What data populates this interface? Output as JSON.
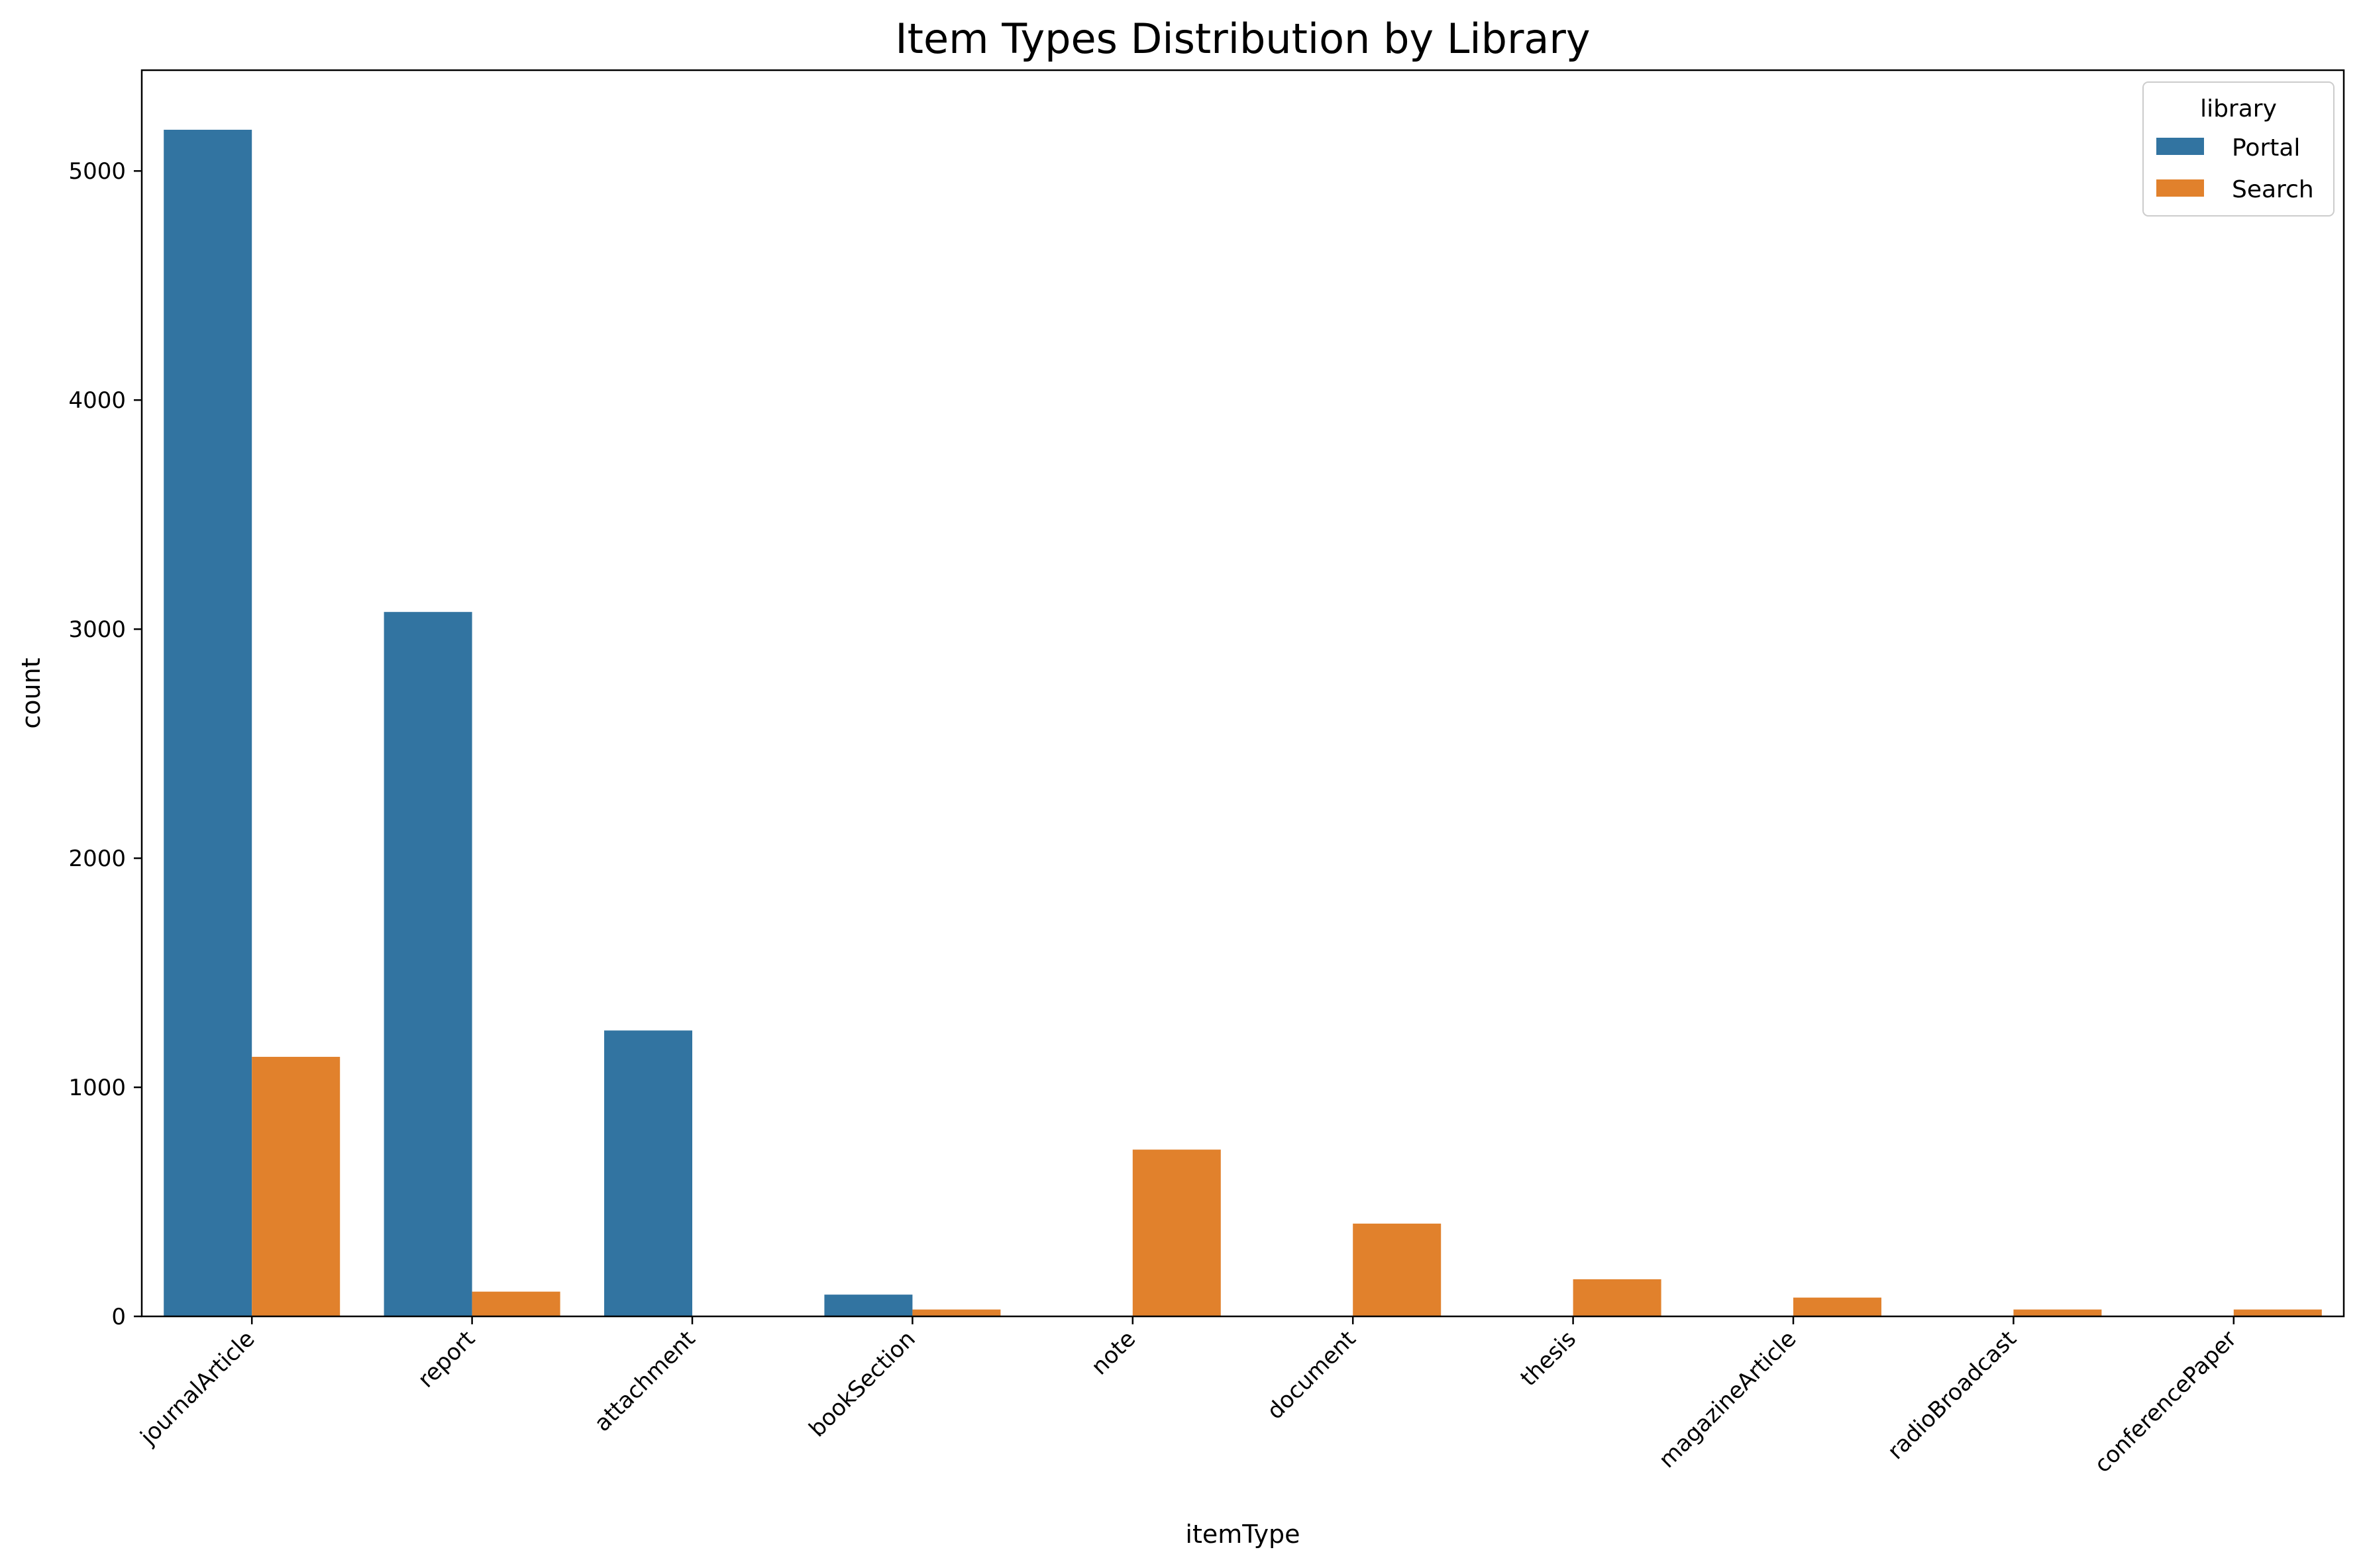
{
  "chart_data": {
    "type": "bar",
    "title": "Item Types Distribution by Library",
    "xlabel": "itemType",
    "ylabel": "count",
    "ylim": [
      0,
      5440
    ],
    "yticks": [
      0,
      1000,
      2000,
      3000,
      4000,
      5000
    ],
    "grid": false,
    "categories": [
      "journalArticle",
      "report",
      "attachment",
      "bookSection",
      "note",
      "document",
      "thesis",
      "magazineArticle",
      "radioBroadcast",
      "conferencePaper"
    ],
    "series": [
      {
        "name": "Portal",
        "color": "#3274a1",
        "values": [
          5180,
          3075,
          1248,
          95,
          0,
          0,
          0,
          0,
          0,
          0
        ]
      },
      {
        "name": "Search",
        "color": "#e1812c",
        "values": [
          1133,
          108,
          0,
          30,
          728,
          405,
          162,
          82,
          30,
          30
        ]
      }
    ],
    "legend": {
      "title": "library",
      "position": "top-right"
    }
  }
}
